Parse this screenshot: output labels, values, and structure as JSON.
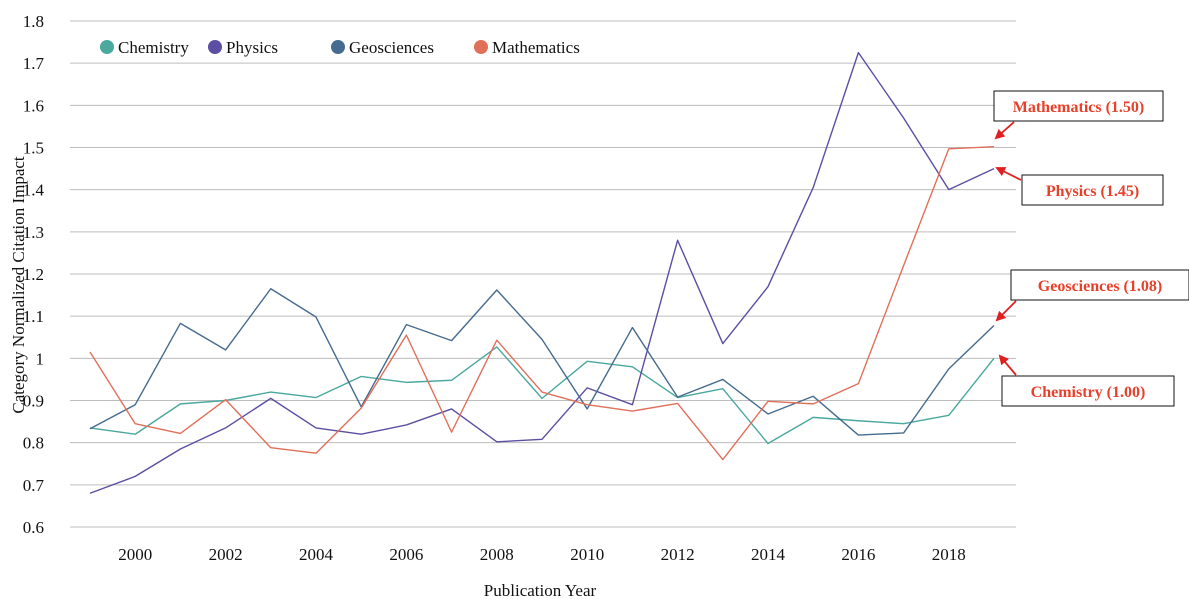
{
  "chart_data": {
    "type": "line",
    "xlabel": "Publication Year",
    "ylabel": "Category Normalized Citation Impact",
    "ylim": [
      0.6,
      1.8
    ],
    "yticks": [
      "0.6",
      "0.7",
      "0.8",
      "0.9",
      "1",
      "1.1",
      "1.2",
      "1.3",
      "1.4",
      "1.5",
      "1.6",
      "1.7",
      "1.8"
    ],
    "xlim": [
      1999,
      2019
    ],
    "xticks": [
      "2000",
      "2002",
      "2004",
      "2006",
      "2008",
      "2010",
      "2012",
      "2014",
      "2016",
      "2018"
    ],
    "grid": "horizontal",
    "legend_position": "top-left",
    "x": [
      1999,
      2000,
      2001,
      2002,
      2003,
      2004,
      2005,
      2006,
      2007,
      2008,
      2009,
      2010,
      2011,
      2012,
      2013,
      2014,
      2015,
      2016,
      2017,
      2018,
      2019
    ],
    "series": [
      {
        "name": "Chemistry",
        "color": "#4aa89e",
        "values": [
          0.835,
          0.82,
          0.892,
          0.9,
          0.92,
          0.907,
          0.957,
          0.943,
          0.948,
          1.027,
          0.905,
          0.993,
          0.98,
          0.907,
          0.928,
          0.798,
          0.86,
          0.852,
          0.845,
          0.865,
          1.0
        ]
      },
      {
        "name": "Physics",
        "color": "#5b4ea3",
        "values": [
          0.68,
          0.72,
          0.785,
          0.835,
          0.905,
          0.835,
          0.82,
          0.842,
          0.88,
          0.802,
          0.808,
          0.93,
          0.89,
          1.28,
          1.035,
          1.17,
          1.405,
          1.725,
          1.57,
          1.4,
          1.45
        ]
      },
      {
        "name": "Geosciences",
        "color": "#456b8e",
        "values": [
          0.833,
          0.89,
          1.083,
          1.02,
          1.165,
          1.098,
          0.885,
          1.08,
          1.042,
          1.162,
          1.045,
          0.88,
          1.073,
          0.908,
          0.95,
          0.868,
          0.91,
          0.818,
          0.823,
          0.975,
          1.078
        ]
      },
      {
        "name": "Mathematics",
        "color": "#e0705a",
        "values": [
          1.015,
          0.845,
          0.822,
          0.902,
          0.788,
          0.775,
          0.882,
          1.055,
          0.825,
          1.043,
          0.92,
          0.89,
          0.875,
          0.893,
          0.76,
          0.898,
          0.892,
          0.94,
          1.22,
          1.497,
          1.502
        ]
      }
    ],
    "annotations": [
      {
        "series": "Mathematics",
        "text": "Mathematics (1.50)"
      },
      {
        "series": "Physics",
        "text": "Physics (1.45)"
      },
      {
        "series": "Geosciences",
        "text": "Geosciences (1.08)"
      },
      {
        "series": "Chemistry",
        "text": "Chemistry (1.00)"
      }
    ],
    "annotation_color": "#e8402a",
    "arrow_color": "#e02020"
  }
}
